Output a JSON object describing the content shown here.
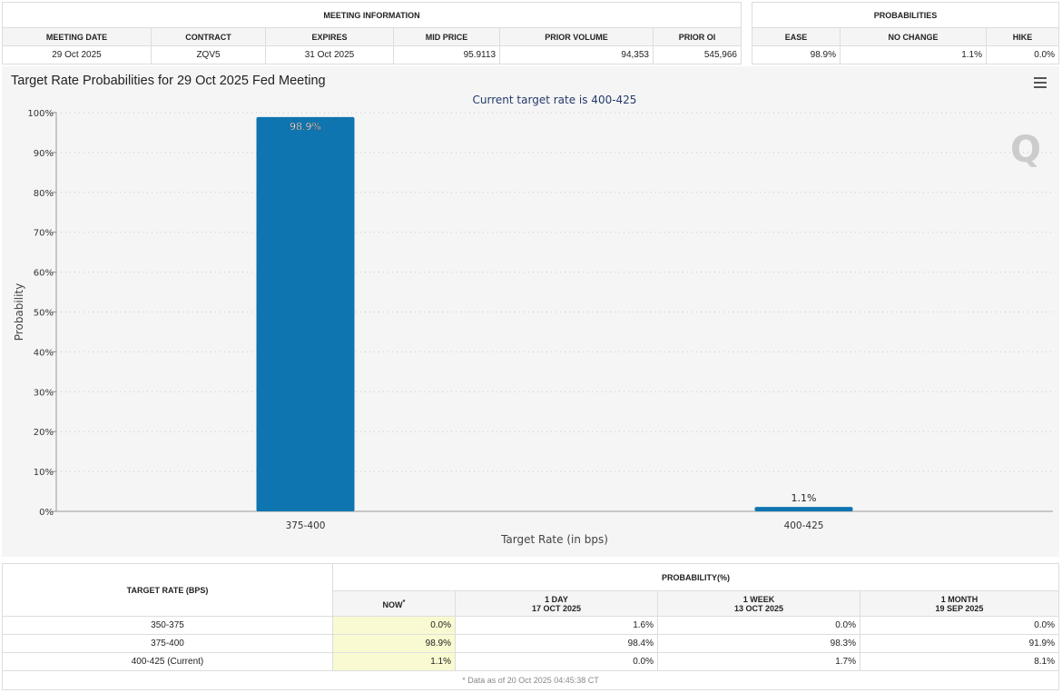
{
  "meeting_info": {
    "title": "MEETING INFORMATION",
    "headers": [
      "MEETING DATE",
      "CONTRACT",
      "EXPIRES",
      "MID PRICE",
      "PRIOR VOLUME",
      "PRIOR OI"
    ],
    "values": [
      "29 Oct 2025",
      "ZQV5",
      "31 Oct 2025",
      "95.9113",
      "94,353",
      "545,966"
    ]
  },
  "probabilities": {
    "title": "PROBABILITIES",
    "headers": [
      "EASE",
      "NO CHANGE",
      "HIKE"
    ],
    "values": [
      "98.9%",
      "1.1%",
      "0.0%"
    ]
  },
  "chart_title": "Target Rate Probabilities for 29 Oct 2025 Fed Meeting",
  "chart_data": {
    "type": "bar",
    "subtitle": "Current target rate is 400-425",
    "xlabel": "Target Rate (in bps)",
    "ylabel": "Probability",
    "categories": [
      "375-400",
      "400-425"
    ],
    "values": [
      98.9,
      1.1
    ],
    "data_labels": [
      "98.9%",
      "1.1%"
    ],
    "ylim": [
      0,
      100
    ],
    "yticks": [
      "0%",
      "10%",
      "20%",
      "30%",
      "40%",
      "50%",
      "60%",
      "70%",
      "80%",
      "90%",
      "100%"
    ],
    "grid": true,
    "color": "#0f75b0"
  },
  "bottom": {
    "target_header": "TARGET RATE (BPS)",
    "prob_header": "PROBABILITY(%)",
    "cols": [
      {
        "l1": "NOW",
        "l2": ""
      },
      {
        "l1": "1 DAY",
        "l2": "17 OCT 2025"
      },
      {
        "l1": "1 WEEK",
        "l2": "13 OCT 2025"
      },
      {
        "l1": "1 MONTH",
        "l2": "19 SEP 2025"
      }
    ],
    "now_mark": "*",
    "rows": [
      {
        "rate": "350-375",
        "v": [
          "0.0%",
          "1.6%",
          "0.0%",
          "0.0%"
        ]
      },
      {
        "rate": "375-400",
        "v": [
          "98.9%",
          "98.4%",
          "98.3%",
          "91.9%"
        ]
      },
      {
        "rate": "400-425 (Current)",
        "v": [
          "1.1%",
          "0.0%",
          "1.7%",
          "8.1%"
        ]
      }
    ],
    "footnote": "* Data as of 20 Oct 2025 04:45:38 CT"
  }
}
